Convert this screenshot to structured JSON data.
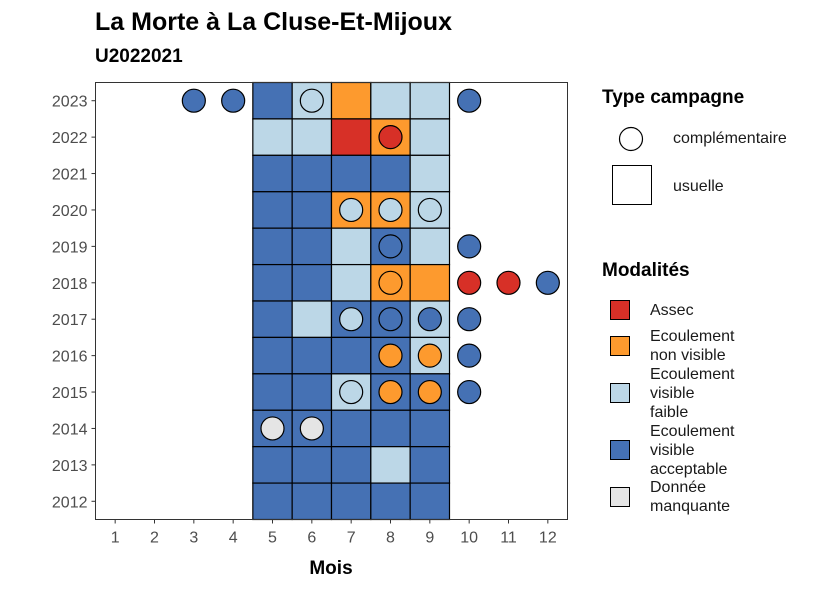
{
  "chart_data": {
    "type": "heatmap",
    "title": "La Morte à La Cluse-Et-Mijoux",
    "subtitle": "U2022021",
    "xlabel": "Mois",
    "ylabel": "",
    "x_ticks": [
      1,
      2,
      3,
      4,
      5,
      6,
      7,
      8,
      9,
      10,
      11,
      12
    ],
    "y_ticks": [
      2012,
      2013,
      2014,
      2015,
      2016,
      2017,
      2018,
      2019,
      2020,
      2021,
      2022,
      2023
    ],
    "xlim": [
      0.5,
      12.5
    ],
    "ylim": [
      2011.5,
      2023.5
    ],
    "colors": {
      "Assec": "#d73027",
      "Ecoulement non visible": "#fd9a2e",
      "Ecoulement visible faible": "#bcd7e7",
      "Ecoulement visible acceptable": "#4571b4",
      "Donnée manquante": "#e5e5e5"
    },
    "legend_type": {
      "title": "Type campagne",
      "items": [
        {
          "label": "complémentaire",
          "shape": "circle"
        },
        {
          "label": "usuelle",
          "shape": "square"
        }
      ]
    },
    "legend_modalites": {
      "title": "Modalités",
      "items": [
        {
          "key": "Assec",
          "lines": [
            "Assec"
          ]
        },
        {
          "key": "Ecoulement non visible",
          "lines": [
            "Ecoulement",
            "non visible"
          ]
        },
        {
          "key": "Ecoulement visible faible",
          "lines": [
            "Ecoulement",
            "visible",
            "faible"
          ]
        },
        {
          "key": "Ecoulement visible acceptable",
          "lines": [
            "Ecoulement",
            "visible",
            "acceptable"
          ]
        },
        {
          "key": "Donnée manquante",
          "lines": [
            "Donnée",
            "manquante"
          ]
        }
      ]
    },
    "usuelle": [
      {
        "year": 2023,
        "month": 5,
        "modalite": "Ecoulement visible acceptable"
      },
      {
        "year": 2023,
        "month": 6,
        "modalite": "Ecoulement visible faible"
      },
      {
        "year": 2023,
        "month": 7,
        "modalite": "Ecoulement non visible"
      },
      {
        "year": 2023,
        "month": 8,
        "modalite": "Ecoulement visible faible"
      },
      {
        "year": 2023,
        "month": 9,
        "modalite": "Ecoulement visible faible"
      },
      {
        "year": 2022,
        "month": 5,
        "modalite": "Ecoulement visible faible"
      },
      {
        "year": 2022,
        "month": 6,
        "modalite": "Ecoulement visible faible"
      },
      {
        "year": 2022,
        "month": 7,
        "modalite": "Assec"
      },
      {
        "year": 2022,
        "month": 8,
        "modalite": "Ecoulement non visible"
      },
      {
        "year": 2022,
        "month": 9,
        "modalite": "Ecoulement visible faible"
      },
      {
        "year": 2021,
        "month": 5,
        "modalite": "Ecoulement visible acceptable"
      },
      {
        "year": 2021,
        "month": 6,
        "modalite": "Ecoulement visible acceptable"
      },
      {
        "year": 2021,
        "month": 7,
        "modalite": "Ecoulement visible acceptable"
      },
      {
        "year": 2021,
        "month": 8,
        "modalite": "Ecoulement visible acceptable"
      },
      {
        "year": 2021,
        "month": 9,
        "modalite": "Ecoulement visible faible"
      },
      {
        "year": 2020,
        "month": 5,
        "modalite": "Ecoulement visible acceptable"
      },
      {
        "year": 2020,
        "month": 6,
        "modalite": "Ecoulement visible acceptable"
      },
      {
        "year": 2020,
        "month": 7,
        "modalite": "Ecoulement non visible"
      },
      {
        "year": 2020,
        "month": 8,
        "modalite": "Ecoulement non visible"
      },
      {
        "year": 2020,
        "month": 9,
        "modalite": "Ecoulement visible faible"
      },
      {
        "year": 2019,
        "month": 5,
        "modalite": "Ecoulement visible acceptable"
      },
      {
        "year": 2019,
        "month": 6,
        "modalite": "Ecoulement visible acceptable"
      },
      {
        "year": 2019,
        "month": 7,
        "modalite": "Ecoulement visible faible"
      },
      {
        "year": 2019,
        "month": 8,
        "modalite": "Ecoulement visible acceptable"
      },
      {
        "year": 2019,
        "month": 9,
        "modalite": "Ecoulement visible faible"
      },
      {
        "year": 2018,
        "month": 5,
        "modalite": "Ecoulement visible acceptable"
      },
      {
        "year": 2018,
        "month": 6,
        "modalite": "Ecoulement visible acceptable"
      },
      {
        "year": 2018,
        "month": 7,
        "modalite": "Ecoulement visible faible"
      },
      {
        "year": 2018,
        "month": 8,
        "modalite": "Ecoulement non visible"
      },
      {
        "year": 2018,
        "month": 9,
        "modalite": "Ecoulement non visible"
      },
      {
        "year": 2017,
        "month": 5,
        "modalite": "Ecoulement visible acceptable"
      },
      {
        "year": 2017,
        "month": 6,
        "modalite": "Ecoulement visible faible"
      },
      {
        "year": 2017,
        "month": 7,
        "modalite": "Ecoulement visible acceptable"
      },
      {
        "year": 2017,
        "month": 8,
        "modalite": "Ecoulement visible acceptable"
      },
      {
        "year": 2017,
        "month": 9,
        "modalite": "Ecoulement visible faible"
      },
      {
        "year": 2016,
        "month": 5,
        "modalite": "Ecoulement visible acceptable"
      },
      {
        "year": 2016,
        "month": 6,
        "modalite": "Ecoulement visible acceptable"
      },
      {
        "year": 2016,
        "month": 7,
        "modalite": "Ecoulement visible acceptable"
      },
      {
        "year": 2016,
        "month": 8,
        "modalite": "Ecoulement visible acceptable"
      },
      {
        "year": 2016,
        "month": 9,
        "modalite": "Ecoulement visible faible"
      },
      {
        "year": 2015,
        "month": 5,
        "modalite": "Ecoulement visible acceptable"
      },
      {
        "year": 2015,
        "month": 6,
        "modalite": "Ecoulement visible acceptable"
      },
      {
        "year": 2015,
        "month": 7,
        "modalite": "Ecoulement visible faible"
      },
      {
        "year": 2015,
        "month": 8,
        "modalite": "Ecoulement visible acceptable"
      },
      {
        "year": 2015,
        "month": 9,
        "modalite": "Ecoulement visible acceptable"
      },
      {
        "year": 2014,
        "month": 5,
        "modalite": "Ecoulement visible acceptable"
      },
      {
        "year": 2014,
        "month": 6,
        "modalite": "Ecoulement visible acceptable"
      },
      {
        "year": 2014,
        "month": 7,
        "modalite": "Ecoulement visible acceptable"
      },
      {
        "year": 2014,
        "month": 8,
        "modalite": "Ecoulement visible acceptable"
      },
      {
        "year": 2014,
        "month": 9,
        "modalite": "Ecoulement visible acceptable"
      },
      {
        "year": 2013,
        "month": 5,
        "modalite": "Ecoulement visible acceptable"
      },
      {
        "year": 2013,
        "month": 6,
        "modalite": "Ecoulement visible acceptable"
      },
      {
        "year": 2013,
        "month": 7,
        "modalite": "Ecoulement visible acceptable"
      },
      {
        "year": 2013,
        "month": 8,
        "modalite": "Ecoulement visible faible"
      },
      {
        "year": 2013,
        "month": 9,
        "modalite": "Ecoulement visible acceptable"
      },
      {
        "year": 2012,
        "month": 5,
        "modalite": "Ecoulement visible acceptable"
      },
      {
        "year": 2012,
        "month": 6,
        "modalite": "Ecoulement visible acceptable"
      },
      {
        "year": 2012,
        "month": 7,
        "modalite": "Ecoulement visible acceptable"
      },
      {
        "year": 2012,
        "month": 8,
        "modalite": "Ecoulement visible acceptable"
      },
      {
        "year": 2012,
        "month": 9,
        "modalite": "Ecoulement visible acceptable"
      }
    ],
    "complementaire": [
      {
        "year": 2023,
        "month": 3,
        "modalite": "Ecoulement visible acceptable"
      },
      {
        "year": 2023,
        "month": 4,
        "modalite": "Ecoulement visible acceptable"
      },
      {
        "year": 2023,
        "month": 6,
        "modalite": "Ecoulement visible faible"
      },
      {
        "year": 2023,
        "month": 10,
        "modalite": "Ecoulement visible acceptable"
      },
      {
        "year": 2022,
        "month": 8,
        "modalite": "Assec"
      },
      {
        "year": 2020,
        "month": 7,
        "modalite": "Ecoulement visible faible"
      },
      {
        "year": 2020,
        "month": 8,
        "modalite": "Ecoulement visible faible"
      },
      {
        "year": 2020,
        "month": 9,
        "modalite": "Ecoulement visible faible"
      },
      {
        "year": 2019,
        "month": 8,
        "modalite": "Ecoulement visible acceptable"
      },
      {
        "year": 2019,
        "month": 10,
        "modalite": "Ecoulement visible acceptable"
      },
      {
        "year": 2018,
        "month": 8,
        "modalite": "Ecoulement non visible"
      },
      {
        "year": 2018,
        "month": 10,
        "modalite": "Assec"
      },
      {
        "year": 2018,
        "month": 11,
        "modalite": "Assec"
      },
      {
        "year": 2018,
        "month": 12,
        "modalite": "Ecoulement visible acceptable"
      },
      {
        "year": 2017,
        "month": 7,
        "modalite": "Ecoulement visible faible"
      },
      {
        "year": 2017,
        "month": 8,
        "modalite": "Ecoulement visible acceptable"
      },
      {
        "year": 2017,
        "month": 9,
        "modalite": "Ecoulement visible acceptable"
      },
      {
        "year": 2017,
        "month": 10,
        "modalite": "Ecoulement visible acceptable"
      },
      {
        "year": 2016,
        "month": 8,
        "modalite": "Ecoulement non visible"
      },
      {
        "year": 2016,
        "month": 9,
        "modalite": "Ecoulement non visible"
      },
      {
        "year": 2016,
        "month": 10,
        "modalite": "Ecoulement visible acceptable"
      },
      {
        "year": 2015,
        "month": 7,
        "modalite": "Ecoulement visible faible"
      },
      {
        "year": 2015,
        "month": 8,
        "modalite": "Ecoulement non visible"
      },
      {
        "year": 2015,
        "month": 9,
        "modalite": "Ecoulement non visible"
      },
      {
        "year": 2015,
        "month": 10,
        "modalite": "Ecoulement visible acceptable"
      },
      {
        "year": 2014,
        "month": 5,
        "modalite": "Donnée manquante"
      },
      {
        "year": 2014,
        "month": 6,
        "modalite": "Donnée manquante"
      }
    ]
  }
}
